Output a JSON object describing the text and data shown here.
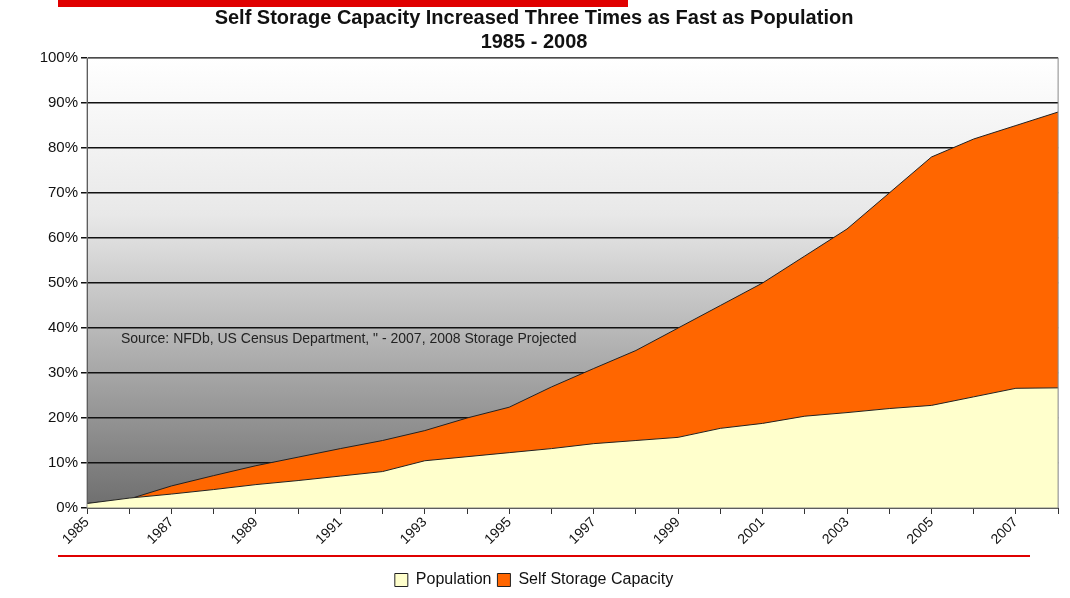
{
  "chart_data": {
    "type": "area",
    "title": "Self Storage Capacity Increased Three Times as Fast as Population",
    "subtitle": "1985 - 2008",
    "categories": [
      "1985",
      null,
      "1987",
      null,
      "1989",
      null,
      "1991",
      null,
      "1993",
      null,
      "1995",
      null,
      "1997",
      null,
      "1999",
      null,
      "2001",
      null,
      "2003",
      null,
      "2005",
      null,
      "2007",
      null
    ],
    "series": [
      {
        "name": "Self Storage Capacity",
        "color": "#ff6600",
        "values": [
          1,
          2,
          4.9,
          7.2,
          9.4,
          11.3,
          13.2,
          15,
          17.2,
          20,
          22.4,
          26.9,
          31,
          35,
          40,
          45,
          50,
          56,
          62,
          70,
          78,
          82,
          85,
          88
        ]
      },
      {
        "name": "Population",
        "color": "#ffffcc",
        "values": [
          1,
          2.2,
          3.1,
          4.1,
          5.2,
          6.1,
          7.1,
          8.1,
          10.5,
          11.4,
          12.3,
          13.2,
          14.3,
          15,
          15.7,
          17.7,
          18.8,
          20.4,
          21.2,
          22.1,
          22.8,
          24.7,
          26.6,
          26.7
        ]
      }
    ],
    "ylim": [
      0,
      100
    ],
    "yticks": [
      {
        "value": 0,
        "label": "0%"
      },
      {
        "value": 10,
        "label": "10%"
      },
      {
        "value": 20,
        "label": "20%"
      },
      {
        "value": 30,
        "label": "30%"
      },
      {
        "value": 40,
        "label": "40%"
      },
      {
        "value": 50,
        "label": "50%"
      },
      {
        "value": 60,
        "label": "60%"
      },
      {
        "value": 70,
        "label": "70%"
      },
      {
        "value": 80,
        "label": "80%"
      },
      {
        "value": 90,
        "label": "90%"
      },
      {
        "value": 100,
        "label": "100%"
      }
    ],
    "grid": "y",
    "legend": "bottom",
    "annotations": [
      "Source: NFDb, US Census Department, \" - 2007, 2008 Storage Projected"
    ]
  }
}
